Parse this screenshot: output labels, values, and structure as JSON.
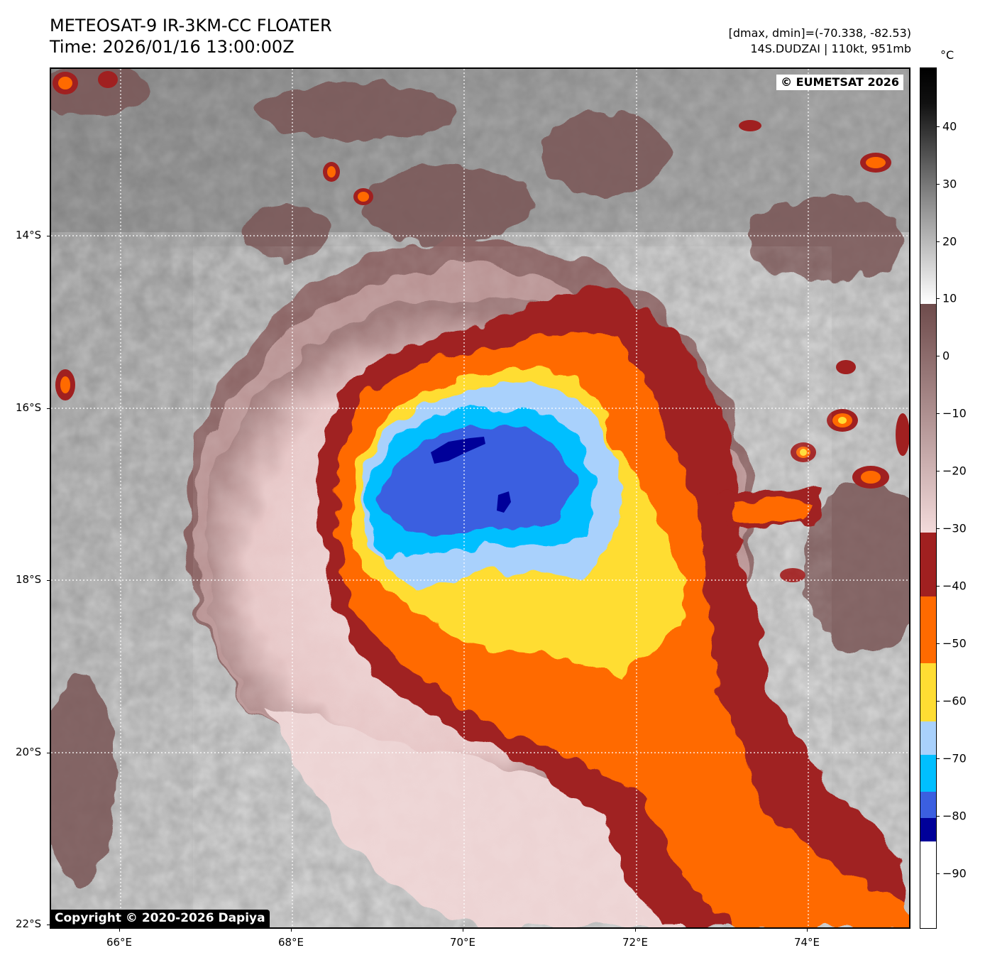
{
  "header": {
    "title_line1": "METEOSAT-9 IR-3KM-CC FLOATER",
    "title_line2": "Time: 2026/01/16 13:00:00Z",
    "info_line1": "[dmax, dmin]=(-70.338, -82.53)",
    "info_line2": "14S.DUDZAI | 110kt, 951mb"
  },
  "map": {
    "eumetsat_credit": "© EUMETSAT 2026",
    "dapiya_credit": "Copyright © 2020-2026 Dapiya",
    "lat_labels": [
      "14°S",
      "16°S",
      "18°S",
      "20°S",
      "22°S"
    ],
    "lon_labels": [
      "66°E",
      "68°E",
      "70°E",
      "72°E",
      "74°E"
    ],
    "gridlines": "dotted white",
    "storm": {
      "name": "DUDZAI",
      "id": "14S",
      "center_lon": 70.0,
      "center_lat": -17.0
    }
  },
  "colorbar": {
    "unit": "°C",
    "tick_labels": [
      "40",
      "30",
      "20",
      "10",
      "0",
      "−10",
      "−20",
      "−30",
      "−40",
      "−50",
      "−60",
      "−70",
      "−80",
      "−90"
    ],
    "colors": {
      "warm_gray_black": "#000000",
      "warm_gray_white": "#ffffff",
      "mauve_dark": "#6e4b4b",
      "mauve_light": "#f3dada",
      "dark_red": "#a02020",
      "orange": "#ff6a00",
      "yellow": "#ffdd33",
      "light_blue": "#a9d1fc",
      "cyan": "#00bfff",
      "royal_blue": "#3b5fe0",
      "navy": "#000099",
      "coldest_white": "#ffffff"
    }
  }
}
